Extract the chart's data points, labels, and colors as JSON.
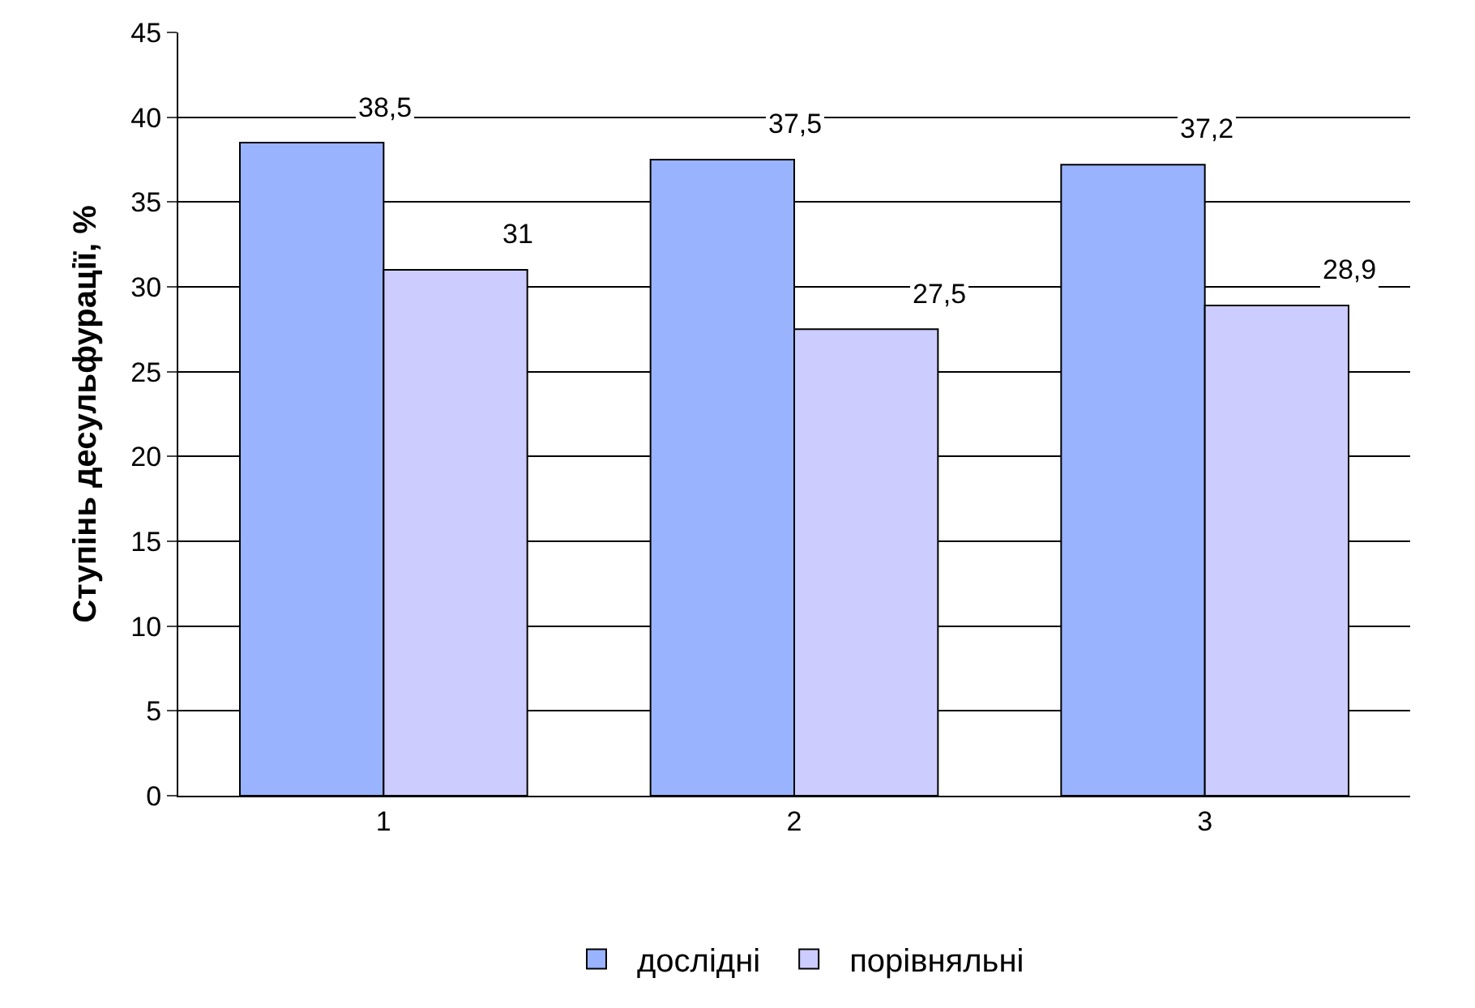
{
  "chart_data": {
    "type": "bar",
    "ylabel": "Ступінь десульфурації, %",
    "categories": [
      "1",
      "2",
      "3"
    ],
    "series": [
      {
        "name": "дослідні",
        "color": "#99b3ff",
        "values": [
          38.5,
          37.5,
          37.2
        ],
        "value_labels": [
          "38,5",
          "37,5",
          "37,2"
        ]
      },
      {
        "name": "порівняльні",
        "color": "#ccccff",
        "values": [
          31,
          27.5,
          28.9
        ],
        "value_labels": [
          "31",
          "27,5",
          "28,9"
        ]
      }
    ],
    "ylim": [
      0,
      45
    ],
    "yticks": [
      0,
      5,
      10,
      15,
      20,
      25,
      30,
      35,
      40,
      45
    ],
    "grid": "y",
    "legend": "bottom"
  }
}
